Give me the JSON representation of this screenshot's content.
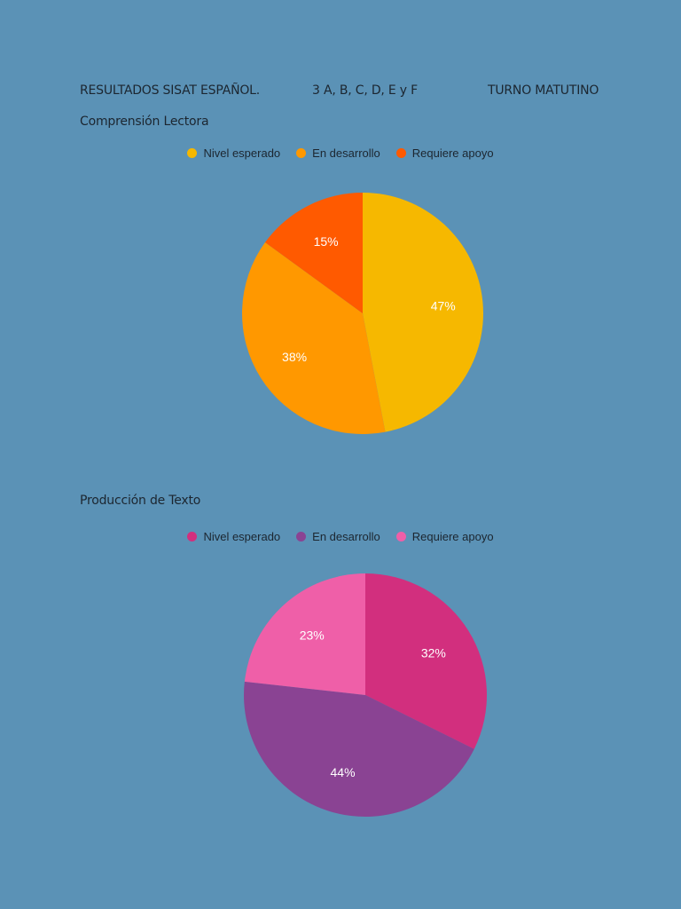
{
  "header": {
    "title": "RESULTADOS SISAT ESPAÑOL.",
    "groups": "3   A, B, C, D, E y F",
    "shift": "TURNO MATUTINO"
  },
  "chart_data": [
    {
      "type": "pie",
      "title": "Comprensión Lectora",
      "legend_position": "top",
      "categories": [
        "Nivel esperado",
        "En desarrollo",
        "Requiere apoyo"
      ],
      "values": [
        47,
        38,
        15
      ],
      "labels": [
        "47%",
        "38%",
        "15%"
      ],
      "colors": [
        "#f6b800",
        "#ff9800",
        "#ff5a00"
      ]
    },
    {
      "type": "pie",
      "title": "Producción de Texto",
      "legend_position": "top",
      "categories": [
        "Nivel esperado",
        "En desarrollo",
        "Requiere apoyo"
      ],
      "values": [
        32,
        44,
        23
      ],
      "labels": [
        "32%",
        "44%",
        "23%"
      ],
      "colors": [
        "#d22f7e",
        "#8a4393",
        "#ef5fa8"
      ]
    }
  ]
}
